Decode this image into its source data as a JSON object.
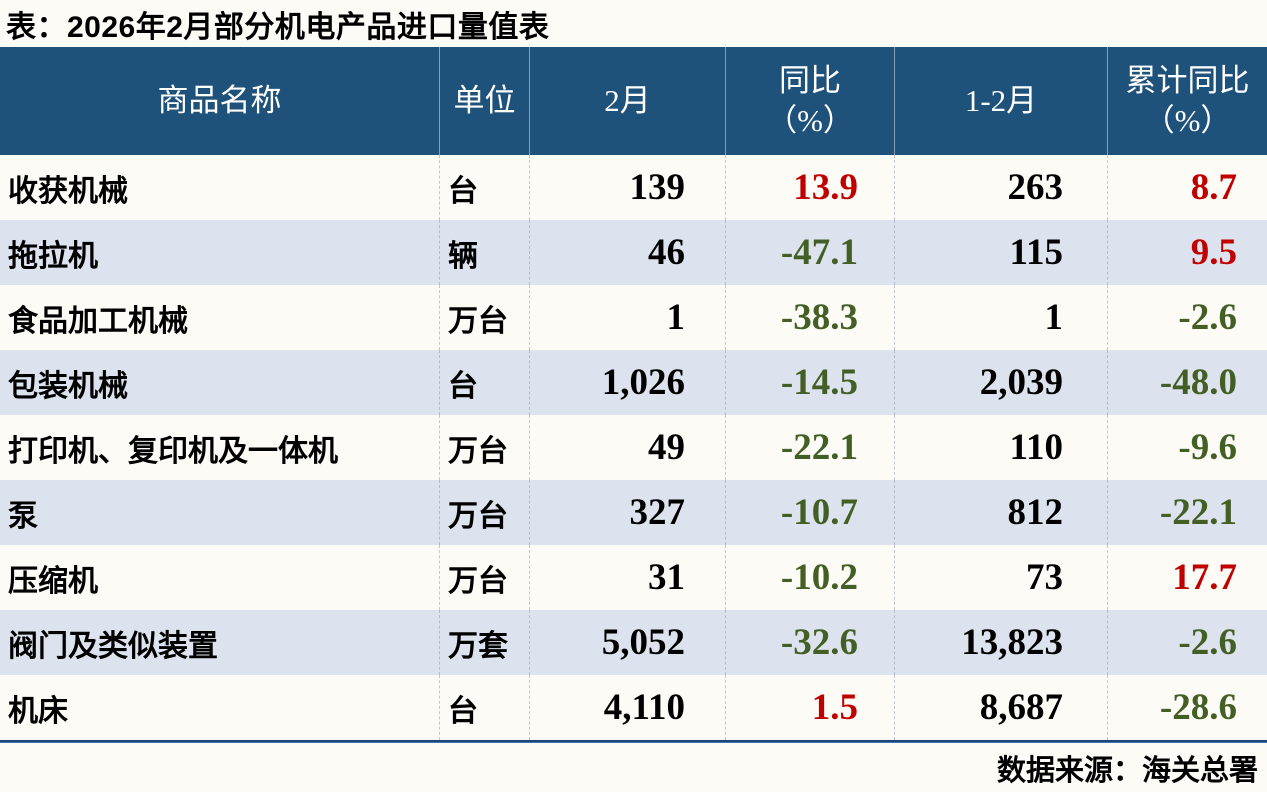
{
  "title": "表：2026年2月部分机电产品进口量值表",
  "source": "数据来源：海关总署",
  "chart_data": {
    "type": "table",
    "title": "表：2026年2月部分机电产品进口量值表",
    "columns": [
      {
        "label": "商品名称",
        "sub": ""
      },
      {
        "label": "单位",
        "sub": ""
      },
      {
        "label": "2月",
        "sub": ""
      },
      {
        "label": "同比",
        "sub": "（%）"
      },
      {
        "label": "1-2月",
        "sub": ""
      },
      {
        "label": "累计同比",
        "sub": "（%）"
      }
    ],
    "rows": [
      {
        "name": "收获机械",
        "unit": "台",
        "feb": "139",
        "yoy": "13.9",
        "jan_feb": "263",
        "cum_yoy": "8.7"
      },
      {
        "name": "拖拉机",
        "unit": "辆",
        "feb": "46",
        "yoy": "-47.1",
        "jan_feb": "115",
        "cum_yoy": "9.5"
      },
      {
        "name": "食品加工机械",
        "unit": "万台",
        "feb": "1",
        "yoy": "-38.3",
        "jan_feb": "1",
        "cum_yoy": "-2.6"
      },
      {
        "name": "包装机械",
        "unit": "台",
        "feb": "1,026",
        "yoy": "-14.5",
        "jan_feb": "2,039",
        "cum_yoy": "-48.0"
      },
      {
        "name": "打印机、复印机及一体机",
        "unit": "万台",
        "feb": "49",
        "yoy": "-22.1",
        "jan_feb": "110",
        "cum_yoy": "-9.6"
      },
      {
        "name": "泵",
        "unit": "万台",
        "feb": "327",
        "yoy": "-10.7",
        "jan_feb": "812",
        "cum_yoy": "-22.1"
      },
      {
        "name": "压缩机",
        "unit": "万台",
        "feb": "31",
        "yoy": "-10.2",
        "jan_feb": "73",
        "cum_yoy": "17.7"
      },
      {
        "name": "阀门及类似装置",
        "unit": "万套",
        "feb": "5,052",
        "yoy": "-32.6",
        "jan_feb": "13,823",
        "cum_yoy": "-2.6"
      },
      {
        "name": "机床",
        "unit": "台",
        "feb": "4,110",
        "yoy": "1.5",
        "jan_feb": "8,687",
        "cum_yoy": "-28.6"
      }
    ],
    "source": "数据来源：海关总署",
    "value_color_rule": {
      "positive": "red",
      "negative": "green"
    }
  },
  "colors": {
    "page_bg": "#FCFBF5",
    "header_bg": "#1F527B",
    "header_text": "#FFFFFF",
    "row_bg": "#FCFBF6",
    "row_alt_bg": "#DCE3EE",
    "text": "#000000",
    "positive_value": "#C00000",
    "negative_value": "#445F25",
    "bottom_rule": "#1B4A80"
  }
}
